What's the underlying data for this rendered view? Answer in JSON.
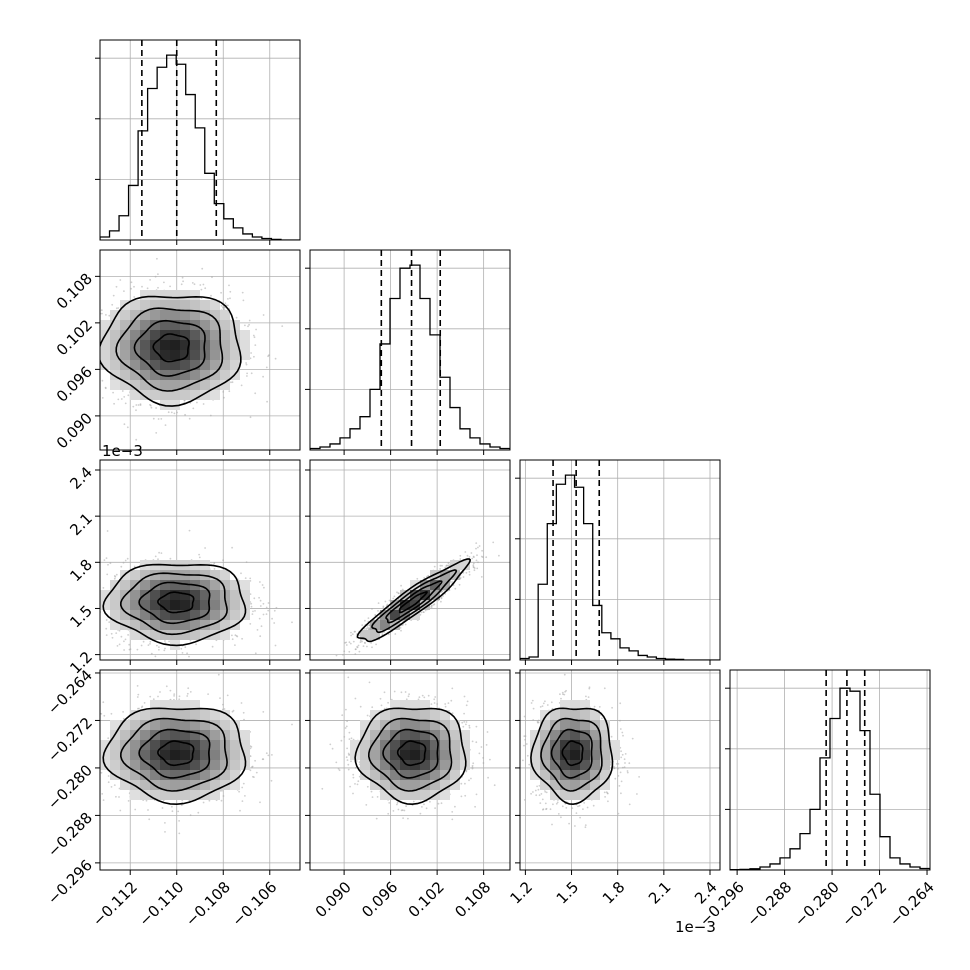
{
  "chart_data": {
    "type": "corner",
    "n_params": 4,
    "grid": true,
    "parameters": [
      {
        "index": 0,
        "range": [
          -0.1133,
          -0.1047
        ],
        "ticks": [
          -0.112,
          -0.11,
          -0.108,
          -0.106
        ],
        "tick_labels": [
          "−0.112",
          "−0.110",
          "−0.108",
          "−0.106"
        ],
        "quantiles": [
          -0.1115,
          -0.11,
          -0.1083
        ],
        "offset_label": ""
      },
      {
        "index": 1,
        "range": [
          0.0856,
          0.1114
        ],
        "ticks": [
          0.09,
          0.096,
          0.102,
          0.108
        ],
        "tick_labels": [
          "0.090",
          "0.096",
          "0.102",
          "0.108"
        ],
        "quantiles": [
          0.0948,
          0.0987,
          0.1024
        ],
        "offset_label": ""
      },
      {
        "index": 2,
        "range": [
          1.165,
          2.465
        ],
        "ticks": [
          1.2,
          1.5,
          1.8,
          2.1,
          2.4
        ],
        "tick_labels": [
          "1.2",
          "1.5",
          "1.8",
          "2.1",
          "2.4"
        ],
        "quantiles": [
          1.38,
          1.53,
          1.68
        ],
        "offset_label": "1e−3"
      },
      {
        "index": 3,
        "range": [
          -0.2972,
          -0.2635
        ],
        "ticks": [
          -0.296,
          -0.288,
          -0.28,
          -0.272,
          -0.264
        ],
        "tick_labels": [
          "−0.296",
          "−0.288",
          "−0.280",
          "−0.272",
          "−0.264"
        ],
        "quantiles": [
          -0.281,
          -0.2775,
          -0.2745
        ],
        "offset_label": ""
      }
    ],
    "histograms": [
      {
        "param": 0,
        "counts": [
          1,
          3,
          8,
          18,
          36,
          50,
          57,
          61,
          58,
          48,
          37,
          22,
          12,
          7,
          4,
          2,
          1,
          0.5,
          0.2,
          0,
          0
        ],
        "ymax": 66
      },
      {
        "param": 1,
        "counts": [
          0.5,
          1,
          2,
          4,
          7,
          11,
          20,
          35,
          50,
          60,
          61,
          50,
          38,
          24,
          14,
          7,
          4,
          2,
          1,
          0.5
        ],
        "ymax": 66
      },
      {
        "param": 2,
        "counts": [
          0.5,
          1,
          25,
          45,
          58,
          61,
          57,
          45,
          18,
          9,
          7,
          4,
          3,
          1.5,
          1,
          0.5,
          0.3,
          0.2,
          0,
          0,
          0,
          0
        ],
        "ymax": 66
      },
      {
        "param": 3,
        "counts": [
          0.1,
          0.2,
          0.4,
          1,
          2,
          4,
          7,
          12,
          20,
          37,
          50,
          60,
          59,
          46,
          25,
          11,
          4,
          2,
          1,
          0.5
        ],
        "ymax": 66
      }
    ],
    "pairs": [
      {
        "x": 0,
        "y": 1,
        "mean": [
          -0.1102,
          0.0988
        ],
        "sd": [
          0.0015,
          0.0035
        ],
        "rho": 0.0,
        "n_points": 1400
      },
      {
        "x": 0,
        "y": 2,
        "mean": [
          -0.11,
          1.54
        ],
        "sd": [
          0.0015,
          0.13
        ],
        "rho": 0.0,
        "n_points": 1400
      },
      {
        "x": 1,
        "y": 2,
        "mean": [
          0.0988,
          1.54
        ],
        "sd": [
          0.0035,
          0.13
        ],
        "rho": 0.93,
        "n_points": 1400
      },
      {
        "x": 0,
        "y": 3,
        "mean": [
          -0.11,
          -0.2775
        ],
        "sd": [
          0.0015,
          0.004
        ],
        "rho": 0.0,
        "n_points": 1400
      },
      {
        "x": 1,
        "y": 3,
        "mean": [
          0.0988,
          -0.2775
        ],
        "sd": [
          0.0035,
          0.004
        ],
        "rho": 0.0,
        "n_points": 1400
      },
      {
        "x": 2,
        "y": 3,
        "mean": [
          1.51,
          -0.2775
        ],
        "sd": [
          0.13,
          0.004
        ],
        "rho": 0.0,
        "n_points": 1400
      }
    ],
    "colors": {
      "hist_line": "#000000",
      "quantile_line": "#000000",
      "contour": "#000000",
      "points": "#a8a8a8",
      "grid": "#b0b0b0"
    }
  }
}
